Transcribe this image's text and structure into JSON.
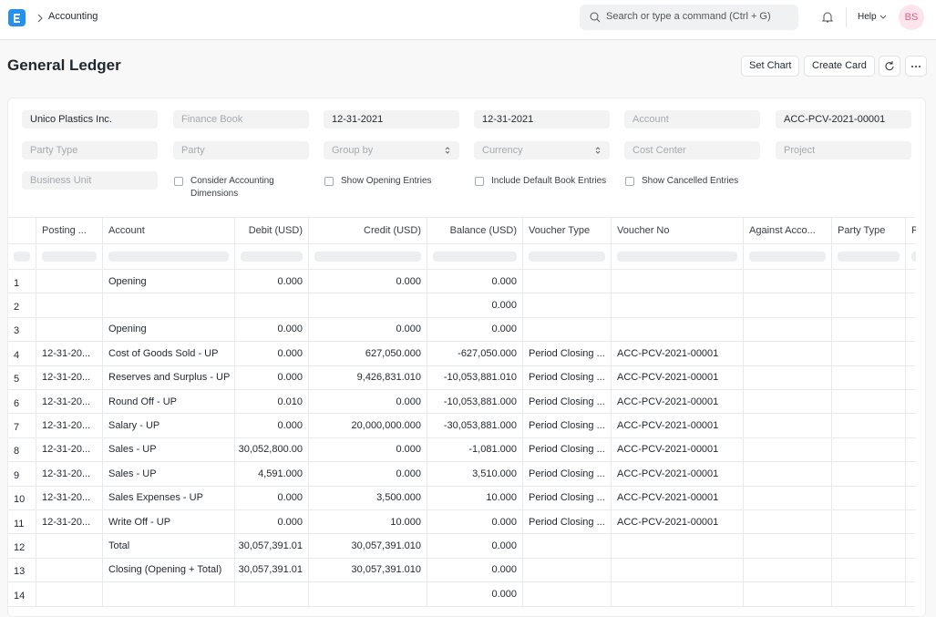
{
  "navbar": {
    "breadcrumb": "Accounting",
    "search_placeholder": "Search or type a command (Ctrl + G)",
    "help": "Help",
    "avatar": "BS"
  },
  "page": {
    "title": "General Ledger",
    "buttons": [
      "Set Chart",
      "Create Card"
    ]
  },
  "filters": {
    "fields": [
      {
        "text": "Unico Plastics Inc.",
        "kind": "value"
      },
      {
        "text": "Finance Book",
        "kind": "placeholder"
      },
      {
        "text": "12-31-2021",
        "kind": "value"
      },
      {
        "text": "12-31-2021",
        "kind": "value"
      },
      {
        "text": "Account",
        "kind": "placeholder"
      },
      {
        "text": "ACC-PCV-2021-00001",
        "kind": "value"
      },
      {
        "text": "Party Type",
        "kind": "placeholder"
      },
      {
        "text": "Party",
        "kind": "placeholder"
      },
      {
        "text": "Group by",
        "kind": "select"
      },
      {
        "text": "Currency",
        "kind": "select"
      },
      {
        "text": "Cost Center",
        "kind": "placeholder"
      },
      {
        "text": "Project",
        "kind": "placeholder"
      },
      {
        "text": "Business Unit",
        "kind": "placeholder"
      }
    ],
    "checkboxes": [
      "Consider Accounting Dimensions",
      "Show Opening Entries",
      "Include Default Book Entries",
      "Show Cancelled Entries"
    ]
  },
  "table": {
    "columns": [
      null,
      "Posting ...",
      "Account",
      "Debit (USD)",
      "Credit (USD)",
      "Balance (USD)",
      "Voucher Type",
      "Voucher No",
      "Against Acco...",
      "Party Type",
      "Pa"
    ],
    "rows": [
      [
        1,
        null,
        "Opening",
        "0.000",
        "0.000",
        "0.000",
        null,
        null,
        null,
        null,
        null
      ],
      [
        2,
        null,
        null,
        null,
        null,
        "0.000",
        null,
        null,
        null,
        null,
        null
      ],
      [
        3,
        null,
        "Opening",
        "0.000",
        "0.000",
        "0.000",
        null,
        null,
        null,
        null,
        null
      ],
      [
        4,
        "12-31-20...",
        "Cost of Goods Sold - UP",
        "0.000",
        "627,050.000",
        "-627,050.000",
        "Period Closing ...",
        "ACC-PCV-2021-00001",
        null,
        null,
        null
      ],
      [
        5,
        "12-31-20...",
        "Reserves and Surplus - UP",
        "0.000",
        "9,426,831.010",
        "-10,053,881.010",
        "Period Closing ...",
        "ACC-PCV-2021-00001",
        null,
        null,
        null
      ],
      [
        6,
        "12-31-20...",
        "Round Off - UP",
        "0.010",
        "0.000",
        "-10,053,881.000",
        "Period Closing ...",
        "ACC-PCV-2021-00001",
        null,
        null,
        null
      ],
      [
        7,
        "12-31-20...",
        "Salary - UP",
        "0.000",
        "20,000,000.000",
        "-30,053,881.000",
        "Period Closing ...",
        "ACC-PCV-2021-00001",
        null,
        null,
        null
      ],
      [
        8,
        "12-31-20...",
        "Sales - UP",
        "30,052,800.00",
        "0.000",
        "-1,081.000",
        "Period Closing ...",
        "ACC-PCV-2021-00001",
        null,
        null,
        null
      ],
      [
        9,
        "12-31-20...",
        "Sales - UP",
        "4,591.000",
        "0.000",
        "3,510.000",
        "Period Closing ...",
        "ACC-PCV-2021-00001",
        null,
        null,
        null
      ],
      [
        10,
        "12-31-20...",
        "Sales Expenses - UP",
        "0.000",
        "3,500.000",
        "10.000",
        "Period Closing ...",
        "ACC-PCV-2021-00001",
        null,
        null,
        null
      ],
      [
        11,
        "12-31-20...",
        "Write Off - UP",
        "0.000",
        "10.000",
        "0.000",
        "Period Closing ...",
        "ACC-PCV-2021-00001",
        null,
        null,
        null
      ],
      [
        12,
        null,
        "Total",
        "30,057,391.01",
        "30,057,391.010",
        "0.000",
        null,
        null,
        null,
        null,
        null
      ],
      [
        13,
        null,
        "Closing (Opening + Total)",
        "30,057,391.01",
        "30,057,391.010",
        "0.000",
        null,
        null,
        null,
        null,
        null
      ],
      [
        14,
        null,
        null,
        null,
        null,
        "0.000",
        null,
        null,
        null,
        null,
        null
      ]
    ]
  }
}
